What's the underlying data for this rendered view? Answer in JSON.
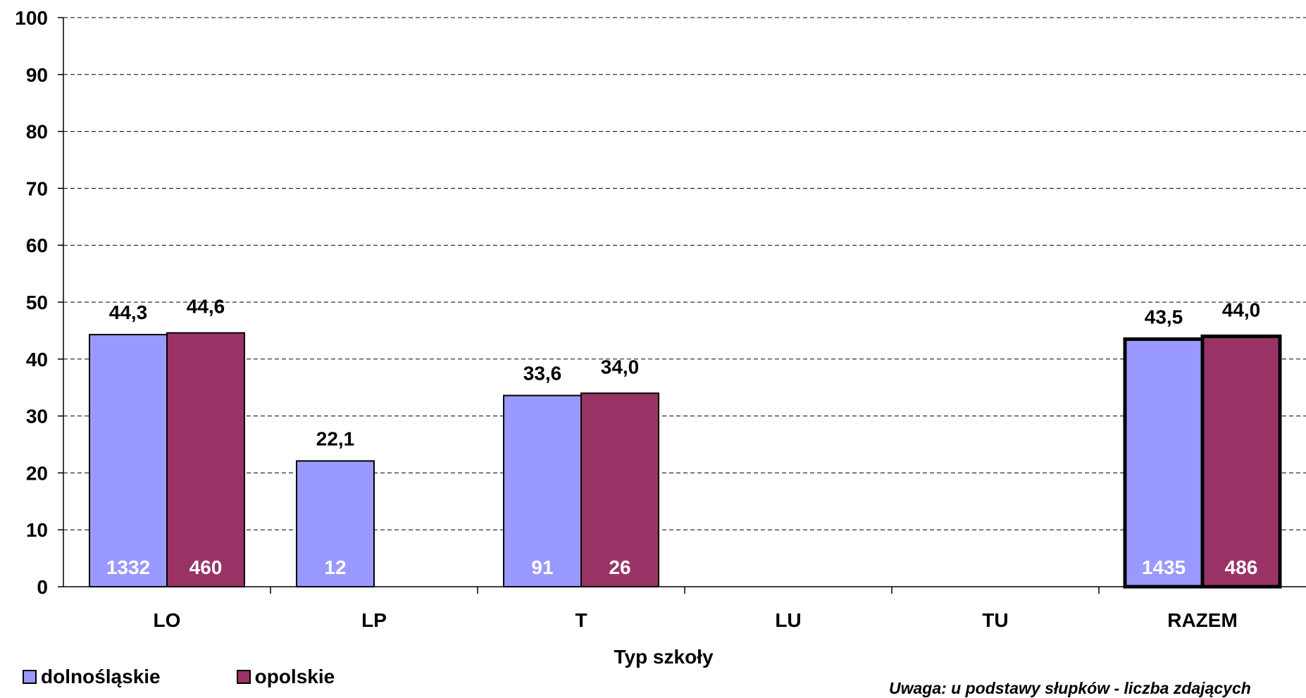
{
  "chart_data": {
    "type": "bar",
    "categories": [
      "LO",
      "LP",
      "T",
      "LU",
      "TU",
      "RAZEM"
    ],
    "series": [
      {
        "name": "dolnośląskie",
        "color": "#9999FF",
        "values": [
          44.3,
          22.1,
          33.6,
          null,
          null,
          43.5
        ],
        "value_labels": [
          "44,3",
          "22,1",
          "33,6",
          "",
          "",
          "43,5"
        ],
        "counts": [
          "1332",
          "12",
          "91",
          "",
          "",
          "1435"
        ]
      },
      {
        "name": "opolskie",
        "color": "#993366",
        "values": [
          44.6,
          null,
          34.0,
          null,
          null,
          44.0
        ],
        "value_labels": [
          "44,6",
          "",
          "34,0",
          "",
          "",
          "44,0"
        ],
        "counts": [
          "460",
          "",
          "26",
          "",
          "",
          "486"
        ]
      }
    ],
    "xlabel": "Typ szkoły",
    "ylabel": "",
    "ylim": [
      0,
      100
    ],
    "yticks": [
      0,
      10,
      20,
      30,
      40,
      50,
      60,
      70,
      80,
      90,
      100
    ],
    "grid": "dashed horizontal",
    "legend_position": "bottom-left",
    "emphasized_category": "RAZEM"
  },
  "legend": {
    "items": [
      {
        "label": "dolnośląskie",
        "color": "#9999FF"
      },
      {
        "label": "opolskie",
        "color": "#993366"
      }
    ]
  },
  "note": "Uwaga: u podstawy słupków - liczba zdających"
}
